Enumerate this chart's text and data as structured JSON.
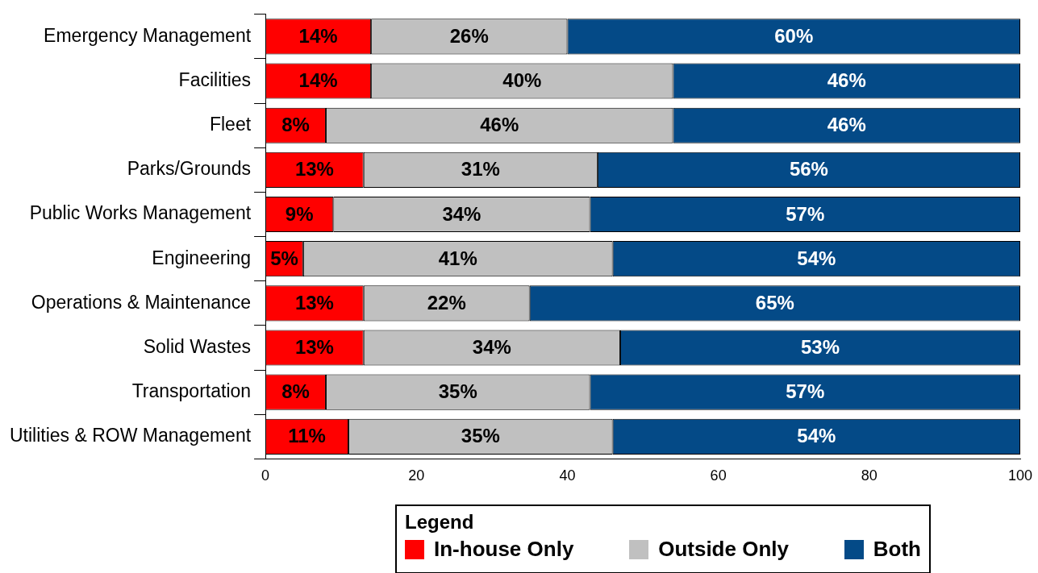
{
  "chart_data": {
    "type": "bar",
    "orientation": "horizontal",
    "stacked": true,
    "categories": [
      "Emergency Management",
      "Facilities",
      "Fleet",
      "Parks/Grounds",
      "Public Works Management",
      "Engineering",
      "Operations & Maintenance",
      "Solid Wastes",
      "Transportation",
      "Utilities & ROW Management"
    ],
    "series": [
      {
        "name": "In-house Only",
        "color": "#ff0000",
        "values": [
          14,
          14,
          8,
          13,
          9,
          5,
          13,
          13,
          8,
          11
        ],
        "value_labels": [
          "14%",
          "14%",
          "8%",
          "13%",
          "9%",
          "5%",
          "13%",
          "13%",
          "8%",
          "11%"
        ]
      },
      {
        "name": "Outside Only",
        "color": "#c0c0c0",
        "values": [
          26,
          40,
          46,
          31,
          34,
          41,
          22,
          34,
          35,
          35
        ],
        "value_labels": [
          "26%",
          "40%",
          "46%",
          "31%",
          "34%",
          "41%",
          "22%",
          "34%",
          "35%",
          "35%"
        ]
      },
      {
        "name": "Both",
        "color": "#044a87",
        "values": [
          60,
          46,
          46,
          56,
          57,
          54,
          65,
          53,
          57,
          54
        ],
        "value_labels": [
          "60%",
          "46%",
          "46%",
          "56%",
          "57%",
          "54%",
          "65%",
          "53%",
          "57%",
          "54%"
        ]
      }
    ],
    "xlim": [
      0,
      100
    ],
    "xticks": [
      0,
      20,
      40,
      60,
      80,
      100
    ],
    "grid": false,
    "legend": "bottom",
    "legend_title": "Legend"
  }
}
